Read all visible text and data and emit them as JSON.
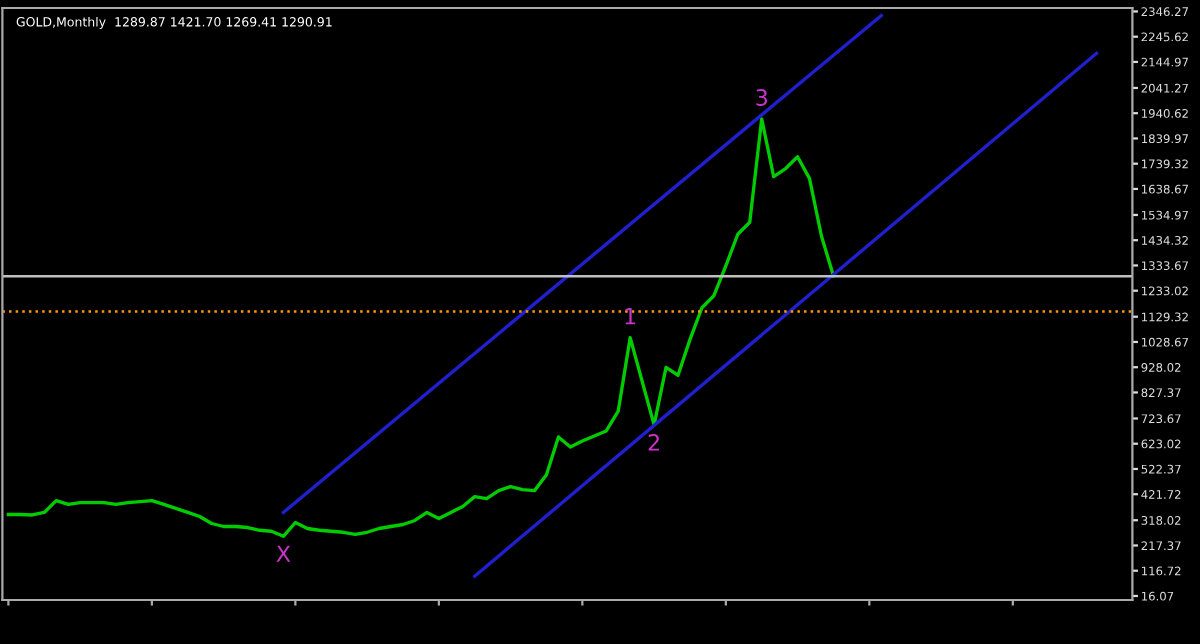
{
  "chart_data": {
    "type": "line",
    "title": "GOLD,Monthly  1289.87 1421.70 1269.41 1290.91",
    "categories": [
      null,
      null,
      null,
      null,
      null,
      null,
      null,
      null,
      null,
      null,
      null,
      null,
      null,
      null,
      null,
      null,
      null,
      null,
      null,
      null,
      null,
      null,
      null,
      null,
      null,
      null,
      null,
      null,
      null,
      null,
      null,
      null,
      null,
      null,
      null,
      null,
      null,
      null,
      null,
      null,
      null,
      null,
      null,
      null,
      null,
      null,
      null,
      null,
      null,
      null,
      null,
      null,
      null,
      null,
      null,
      null,
      null,
      null,
      null,
      null,
      null,
      null,
      null,
      null,
      null,
      null,
      null,
      null,
      null,
      null,
      null,
      null,
      null,
      null,
      null,
      null,
      null,
      null,
      null,
      null,
      null,
      null,
      null,
      null,
      null,
      null,
      null,
      null,
      null,
      null,
      null,
      null
    ],
    "series": [
      {
        "color": "#00cc00",
        "values": [
          341,
          341,
          339,
          349,
          396,
          381,
          388,
          388,
          388,
          381,
          388,
          392,
          396,
          381,
          365,
          349,
          333,
          305,
          293,
          293,
          289,
          278,
          274,
          254,
          309,
          285,
          278,
          274,
          270,
          262,
          270,
          285,
          293,
          301,
          317,
          349,
          325,
          349,
          373,
          412,
          404,
          436,
          452,
          440,
          436,
          499,
          650,
          610,
          634,
          654,
          674,
          753,
          1046,
          872,
          698,
          927,
          896,
          1038,
          1165,
          1213,
          1332,
          1458,
          1506,
          1918,
          1688,
          1720,
          1767,
          1680,
          1450,
          1292,
          null,
          null,
          null,
          null,
          null,
          null,
          null,
          null,
          null,
          null,
          null,
          null,
          null,
          null,
          null,
          null,
          null,
          null,
          null,
          null,
          null,
          null
        ]
      },
      {
        "color": "#2020d0",
        "values": [
          null,
          null,
          null,
          null,
          null,
          null,
          null,
          null,
          null,
          null,
          null,
          null,
          null,
          null,
          null,
          null,
          null,
          null,
          null,
          null,
          null,
          null,
          null,
          349,
          null,
          null,
          null,
          null,
          null,
          null,
          null,
          null,
          null,
          null,
          null,
          null,
          null,
          null,
          null,
          null,
          null,
          null,
          null,
          null,
          null,
          null,
          null,
          null,
          null,
          null,
          null,
          null,
          null,
          null,
          null,
          null,
          null,
          null,
          null,
          null,
          null,
          null,
          null,
          null,
          null,
          null,
          null,
          null,
          null,
          null,
          null,
          null,
          null,
          2330,
          null,
          null,
          null,
          null,
          null,
          null,
          null,
          null,
          null,
          null,
          null,
          null,
          null,
          null,
          null,
          null,
          null,
          null
        ]
      },
      {
        "color": "#2020d0",
        "values": [
          null,
          null,
          null,
          null,
          null,
          null,
          null,
          null,
          null,
          null,
          null,
          null,
          null,
          null,
          null,
          null,
          null,
          null,
          null,
          null,
          null,
          null,
          null,
          null,
          null,
          null,
          null,
          null,
          null,
          null,
          null,
          null,
          null,
          null,
          null,
          null,
          null,
          null,
          null,
          95,
          null,
          null,
          null,
          null,
          null,
          null,
          null,
          null,
          null,
          null,
          null,
          null,
          null,
          null,
          null,
          null,
          null,
          null,
          null,
          null,
          null,
          null,
          null,
          null,
          null,
          null,
          null,
          null,
          null,
          null,
          null,
          null,
          null,
          null,
          null,
          null,
          null,
          null,
          null,
          null,
          null,
          null,
          null,
          null,
          null,
          null,
          null,
          null,
          null,
          null,
          null,
          2179
        ]
      }
    ],
    "ylim": [
      0,
      2360
    ],
    "yticks": [
      16.07,
      116.72,
      217.37,
      318.02,
      421.72,
      522.37,
      623.02,
      723.67,
      827.37,
      928.02,
      1028.67,
      1129.32,
      1233.02,
      1333.67,
      1434.32,
      1534.97,
      1638.67,
      1739.32,
      1839.97,
      1940.62,
      2041.27,
      2144.97,
      2245.62,
      2346.27
    ],
    "ref_lines": [
      {
        "axis": "y",
        "value": 1291,
        "color": "#c0c0c0",
        "line_style": "solid"
      },
      {
        "axis": "y",
        "value": 1150,
        "color": "#ff9900",
        "line_style": "dotted"
      }
    ],
    "annotations": [
      {
        "text": "X",
        "y": 254
      },
      {
        "text": "1",
        "y": 1046
      },
      {
        "text": "2",
        "y": 698
      },
      {
        "text": "3",
        "y": 1918
      }
    ],
    "tick_labels": "y",
    "grid": false,
    "legend": false
  }
}
